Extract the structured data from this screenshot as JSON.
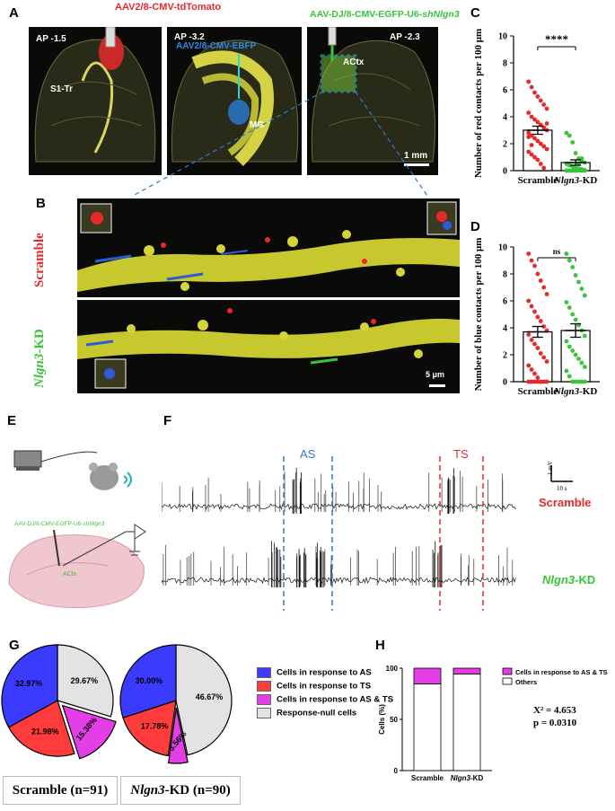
{
  "panels": {
    "A": "A",
    "B": "B",
    "C": "C",
    "D": "D",
    "E": "E",
    "F": "F",
    "G": "G",
    "H": "H"
  },
  "panel_a": {
    "virus_red": "AAV2/8-CMV-tdTomato",
    "virus_blue": "AAV2/8-CMV-EBFP",
    "virus_green_prefix": "AAV-DJ/8-CMV-EGFP-U6-",
    "virus_green_gene": "shNlgn3",
    "ap1": "AP -1.5",
    "ap2": "AP -3.2",
    "ap3": "AP -2.3",
    "region1": "S1-Tr",
    "region2": "MG",
    "region3": "ACtx",
    "scalebar": "1 mm"
  },
  "panel_b": {
    "row1": "Scramble",
    "row2_gene": "Nlgn3",
    "row2_suffix": "-KD",
    "scalebar": "5 μm"
  },
  "panel_e": {
    "virus_prefix": "AAV-DJ/8-CMV-EGFP-U6-",
    "virus_gene": "shNlgn3",
    "region": "ACtx"
  },
  "panel_f": {
    "as_label": "AS",
    "ts_label": "TS",
    "scale_v": "1 mV",
    "scale_t": "10 s",
    "row1": "Scramble",
    "row2_gene": "Nlgn3",
    "row2_suffix": "-KD"
  },
  "colors": {
    "red": "#e8292b",
    "green": "#3ac43a",
    "blue": "#2b7bd6",
    "as_blue": "#3b3bff",
    "ts_red": "#ff3b3b",
    "both_mag": "#e43ee6",
    "null_gray": "#e3e3e3"
  },
  "chart_data": [
    {
      "type": "bar",
      "panel": "C",
      "categories": [
        "Scramble",
        "Nlgn3-KD"
      ],
      "category_labels": [
        {
          "main": "Scramble",
          "ital": ""
        },
        {
          "main": "-KD",
          "ital": "Nlgn3"
        }
      ],
      "values": [
        3.0,
        0.6
      ],
      "sem": [
        0.3,
        0.2
      ],
      "points": [
        [
          6.6,
          6.2,
          5.8,
          5.5,
          5.2,
          4.9,
          4.6,
          4.3,
          4.0,
          3.8,
          3.6,
          3.4,
          3.2,
          3.0,
          2.8,
          2.6,
          2.4,
          2.2,
          2.0,
          1.8,
          1.6,
          1.4,
          1.2,
          1.0,
          0.8,
          0.5,
          0.2,
          3.5,
          2.5,
          1.9
        ],
        [
          2.8,
          2.6,
          2.1,
          1.3,
          0.9,
          0.7,
          0.6,
          0.5,
          0.4,
          0.3,
          0.2,
          0.15,
          0.1,
          0.05,
          0,
          0,
          0,
          0,
          0,
          0,
          0,
          0,
          0,
          0,
          0,
          0.5,
          0.9
        ]
      ],
      "point_colors": [
        "#e8292b",
        "#3ac43a"
      ],
      "ylabel": "Number of red contacts per 100 μm",
      "ylim": [
        0,
        10
      ],
      "yticks": [
        "0",
        "2",
        "4",
        "6",
        "8",
        "10"
      ],
      "significance": "****"
    },
    {
      "type": "bar",
      "panel": "D",
      "categories": [
        "Scramble",
        "Nlgn3-KD"
      ],
      "category_labels": [
        {
          "main": "Scramble",
          "ital": ""
        },
        {
          "main": "-KD",
          "ital": "Nlgn3"
        }
      ],
      "values": [
        3.7,
        3.8
      ],
      "sem": [
        0.4,
        0.5
      ],
      "points": [
        [
          9.5,
          9.0,
          8.6,
          8.0,
          7.5,
          7.0,
          6.5,
          6.0,
          5.6,
          5.2,
          4.8,
          4.5,
          4.1,
          3.8,
          3.5,
          3.1,
          2.8,
          2.5,
          2.1,
          1.8,
          1.5,
          1.2,
          0.9,
          0.6,
          0.3,
          0,
          0,
          0,
          0,
          0,
          0,
          0,
          0
        ],
        [
          9.5,
          9.0,
          8.5,
          7.9,
          7.4,
          6.9,
          6.4,
          5.9,
          5.5,
          5.0,
          4.6,
          4.2,
          3.8,
          3.4,
          3.0,
          2.6,
          2.3,
          2.0,
          1.7,
          1.4,
          1.1,
          0.8,
          0.4,
          0,
          0,
          0,
          0,
          0
        ]
      ],
      "point_colors": [
        "#e8292b",
        "#3ac43a"
      ],
      "ylabel": "Number of blue contacts per 100 μm",
      "ylim": [
        0,
        10
      ],
      "yticks": [
        "0",
        "2",
        "4",
        "6",
        "8",
        "10"
      ],
      "significance": "ns"
    },
    {
      "type": "pie",
      "panel": "G-left",
      "title_main": "Scramble (n=91)",
      "title_ital": "",
      "slices": [
        {
          "label": "Cells in response to AS",
          "value": 32.97,
          "text": "32.97%"
        },
        {
          "label": "Cells in response to TS",
          "value": 21.98,
          "text": "21.98%"
        },
        {
          "label": "Cells in response to AS & TS",
          "value": 15.38,
          "text": "15.38%"
        },
        {
          "label": "Response-null cells",
          "value": 29.67,
          "text": "29.67%"
        }
      ]
    },
    {
      "type": "pie",
      "panel": "G-right",
      "title_main": "-KD (n=90)",
      "title_ital": "Nlgn3",
      "slices": [
        {
          "label": "Cells in response to AS",
          "value": 30.0,
          "text": "30.00%"
        },
        {
          "label": "Cells in response to TS",
          "value": 17.78,
          "text": "17.78%"
        },
        {
          "label": "Cells in response to AS & TS",
          "value": 5.56,
          "text": "5.56%"
        },
        {
          "label": "Response-null cells",
          "value": 46.67,
          "text": "46.67%"
        }
      ]
    },
    {
      "type": "bar",
      "panel": "H",
      "stacked": true,
      "categories": [
        "Scramble",
        "Nlgn3-KD"
      ],
      "category_labels": [
        {
          "main": "Scramble",
          "ital": ""
        },
        {
          "main": "-KD",
          "ital": "Nlgn3"
        }
      ],
      "series": [
        {
          "name": "Others",
          "values": [
            84.62,
            94.44
          ],
          "color": "#ffffff"
        },
        {
          "name": "Cells in response to AS & TS",
          "values": [
            15.38,
            5.56
          ],
          "color": "#e43ee6"
        }
      ],
      "ylabel": "Cells (%)",
      "ylim": [
        0,
        100
      ],
      "yticks": [
        "0",
        "50",
        "100"
      ],
      "stat_line1": "X² = 4.653",
      "stat_line2": "p = 0.0310"
    }
  ],
  "legend_g": [
    {
      "label": "Cells in response to AS",
      "color": "#3b3bff"
    },
    {
      "label": "Cells in response to TS",
      "color": "#ff3b3b"
    },
    {
      "label": "Cells in response to AS & TS",
      "color": "#e43ee6"
    },
    {
      "label": "Response-null cells",
      "color": "#e3e3e3"
    }
  ]
}
